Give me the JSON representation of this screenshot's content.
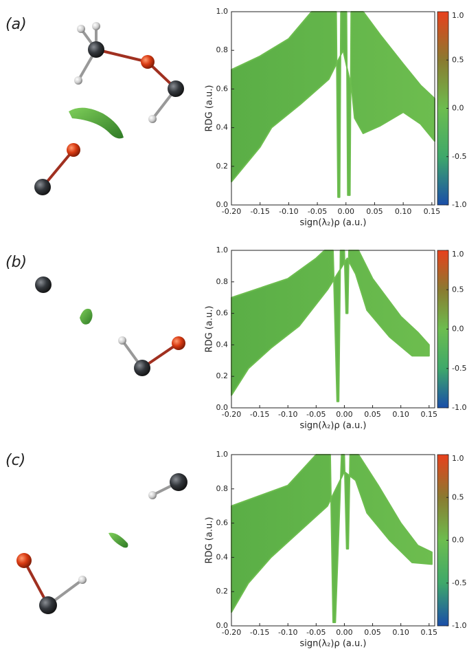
{
  "chart_data": [
    {
      "type": "scatter",
      "panel_label": "(a)",
      "xlabel": "sign(λ₂)ρ (a.u.)",
      "ylabel": "RDG (a.u.)",
      "color": "#6dbd4f",
      "xlim": [
        -0.2,
        0.155
      ],
      "ylim": [
        0,
        1
      ],
      "xticks": [
        {
          "value": -0.2,
          "label": "-0.20"
        },
        {
          "value": -0.15,
          "label": "-0.15"
        },
        {
          "value": -0.1,
          "label": "-0.10"
        },
        {
          "value": -0.05,
          "label": "-0.05"
        },
        {
          "value": 0,
          "label": "0.00"
        },
        {
          "value": 0.05,
          "label": "0.05"
        },
        {
          "value": 0.1,
          "label": "0.10"
        },
        {
          "value": 0.15,
          "label": "0.15"
        }
      ],
      "yticks": [
        {
          "value": 0,
          "label": "0.0"
        },
        0.2,
        0.4,
        0.6,
        0.8,
        {
          "value": 1,
          "label": "1.0"
        }
      ],
      "colorbar_lim": [
        -1,
        1
      ],
      "colorbar_colors": [
        "#1a4ea8",
        "#3fa86a",
        "#6dbd4f",
        "#8a7a30",
        "#e8401c"
      ],
      "colorbar_ticks": [
        {
          "value": 1,
          "label": "1.0"
        },
        0.5,
        {
          "value": 0,
          "label": "0.0"
        },
        -0.5,
        {
          "value": -1,
          "label": "-1.0"
        }
      ],
      "x": [
        -0.2,
        -0.2,
        -0.15,
        -0.1,
        -0.06,
        -0.017,
        -0.014,
        -0.011,
        -0.009,
        0.001,
        0.003,
        0.007,
        0.009,
        0.03,
        0.06,
        0.1,
        0.13,
        0.155,
        0.155,
        0.13,
        0.1,
        0.06,
        0.03,
        0.015,
        0.01,
        -0.005,
        -0.03,
        -0.08,
        -0.13,
        -0.15
      ],
      "y": [
        0.12,
        0.7,
        0.77,
        0.86,
        1,
        1,
        0.04,
        0.04,
        1,
        1,
        0.05,
        0.05,
        1,
        1,
        0.88,
        0.73,
        0.62,
        0.55,
        0.33,
        0.42,
        0.48,
        0.41,
        0.37,
        0.45,
        0.6,
        0.8,
        0.65,
        0.52,
        0.4,
        0.3
      ]
    },
    {
      "type": "scatter",
      "panel_label": "(b)",
      "xlabel": "sign(λ₂)ρ (a.u.)",
      "ylabel": "RDG (a.u.)",
      "color": "#6dbd4f",
      "xlim": [
        -0.2,
        0.16
      ],
      "ylim": [
        0,
        1
      ],
      "xticks": [
        {
          "value": -0.2,
          "label": "-0.20"
        },
        {
          "value": -0.15,
          "label": "-0.15"
        },
        {
          "value": -0.1,
          "label": "-0.10"
        },
        {
          "value": -0.05,
          "label": "-0.05"
        },
        {
          "value": 0,
          "label": "0.00"
        },
        {
          "value": 0.05,
          "label": "0.05"
        },
        {
          "value": 0.1,
          "label": "0.10"
        },
        {
          "value": 0.15,
          "label": "0.15"
        }
      ],
      "yticks": [
        {
          "value": 0,
          "label": "0.0"
        },
        0.2,
        0.4,
        0.6,
        0.8,
        {
          "value": 1,
          "label": "1.0"
        }
      ],
      "colorbar_lim": [
        -1,
        1
      ],
      "colorbar_colors": [
        "#1a4ea8",
        "#3fa86a",
        "#6dbd4f",
        "#8a7a30",
        "#e8401c"
      ],
      "colorbar_ticks": [
        {
          "value": 1,
          "label": "1.0"
        },
        0.5,
        {
          "value": 0,
          "label": "0.0"
        },
        -0.5,
        {
          "value": -1,
          "label": "-1.0"
        }
      ],
      "x": [
        -0.2,
        -0.2,
        -0.1,
        -0.05,
        -0.035,
        -0.02,
        -0.013,
        -0.01,
        -0.007,
        0,
        0.003,
        0.006,
        0.008,
        0.025,
        0.05,
        0.1,
        0.13,
        0.15,
        0.15,
        0.12,
        0.08,
        0.04,
        0.02,
        0.005,
        -0.03,
        -0.08,
        -0.13,
        -0.17
      ],
      "y": [
        0.08,
        0.7,
        0.82,
        0.95,
        1,
        1,
        0.04,
        0.04,
        1,
        1,
        0.6,
        0.6,
        1,
        1,
        0.82,
        0.58,
        0.48,
        0.4,
        0.33,
        0.33,
        0.45,
        0.62,
        0.85,
        0.95,
        0.75,
        0.52,
        0.38,
        0.25
      ]
    },
    {
      "type": "scatter",
      "panel_label": "(c)",
      "xlabel": "sign(λ₂)ρ (a.u.)",
      "ylabel": "RDG (a.u.)",
      "color": "#6dbd4f",
      "xlim": [
        -0.2,
        0.16
      ],
      "ylim": [
        0,
        1
      ],
      "xticks": [
        {
          "value": -0.2,
          "label": "-0.20"
        },
        {
          "value": -0.15,
          "label": "-0.15"
        },
        {
          "value": -0.1,
          "label": "-0.10"
        },
        {
          "value": -0.05,
          "label": "-0.05"
        },
        {
          "value": 0,
          "label": "0.00"
        },
        {
          "value": 0.05,
          "label": "0.05"
        },
        {
          "value": 0.1,
          "label": "0.10"
        },
        {
          "value": 0.15,
          "label": "0.15"
        }
      ],
      "yticks": [
        {
          "value": 0,
          "label": "0.0"
        },
        0.2,
        0.4,
        0.6,
        0.8,
        {
          "value": 1,
          "label": "1.0"
        }
      ],
      "colorbar_lim": [
        -1,
        1
      ],
      "colorbar_colors": [
        "#1a4ea8",
        "#3fa86a",
        "#6dbd4f",
        "#8a7a30",
        "#e8401c"
      ],
      "colorbar_ticks": [
        {
          "value": 1,
          "label": "1.0"
        },
        0.5,
        {
          "value": 0,
          "label": "0.0"
        },
        -0.5,
        {
          "value": -1,
          "label": "-1.0"
        }
      ],
      "x": [
        -0.2,
        -0.2,
        -0.1,
        -0.05,
        -0.025,
        -0.02,
        -0.016,
        -0.005,
        0,
        0.004,
        0.007,
        0.01,
        0.025,
        0.06,
        0.1,
        0.13,
        0.155,
        0.155,
        0.12,
        0.08,
        0.04,
        0.02,
        0,
        -0.03,
        -0.08,
        -0.13,
        -0.17
      ],
      "y": [
        0.08,
        0.7,
        0.82,
        1,
        1,
        0.02,
        0.02,
        1,
        1,
        0.45,
        0.45,
        1,
        1,
        0.82,
        0.6,
        0.47,
        0.43,
        0.36,
        0.37,
        0.5,
        0.66,
        0.85,
        0.9,
        0.7,
        0.55,
        0.4,
        0.25
      ]
    }
  ]
}
